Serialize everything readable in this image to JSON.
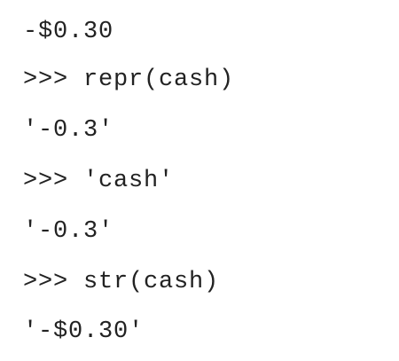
{
  "console": {
    "lines": [
      {
        "text": "-$0.30"
      },
      {
        "text": ">>> repr(cash)"
      },
      {
        "text": "'-0.3'"
      },
      {
        "text": ">>> 'cash'"
      },
      {
        "text": "'-0.3'"
      },
      {
        "text": ">>> str(cash)"
      },
      {
        "text": "'-$0.30'"
      }
    ]
  }
}
